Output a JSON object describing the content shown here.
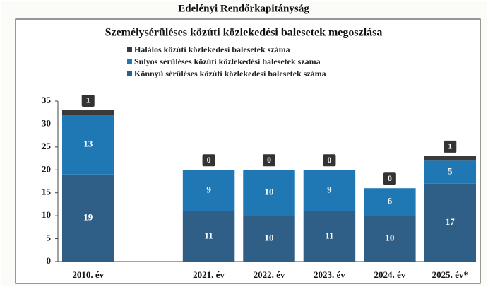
{
  "header": {
    "title": "Edelényi Rendőrkapitányság"
  },
  "chart_data": {
    "type": "stacked_bar",
    "title": "Személysérüléses közúti közlekedési balesetek megoszlása",
    "categories": [
      "2010. év",
      null,
      "2021. év",
      "2022. év",
      "2023. év",
      "2024. év",
      "2025. év*"
    ],
    "series": [
      {
        "name": "Könnyű sérüléses közúti közlekedési balesetek száma",
        "color": "#2f5f86",
        "values": [
          19,
          null,
          11,
          10,
          11,
          10,
          17
        ]
      },
      {
        "name": "Súlyos sérüléses közúti közlekedési balesetek száma",
        "color": "#1f78b4",
        "values": [
          13,
          null,
          9,
          10,
          9,
          6,
          5
        ]
      },
      {
        "name": "Halálos közúti közlekedési balesetek száma",
        "color": "#3a3a3a",
        "values": [
          1,
          null,
          0,
          0,
          0,
          0,
          1
        ]
      }
    ],
    "ylim": [
      0,
      35
    ],
    "yticks": [
      0,
      5,
      10,
      15,
      20,
      25,
      30,
      35
    ],
    "grid": false
  }
}
